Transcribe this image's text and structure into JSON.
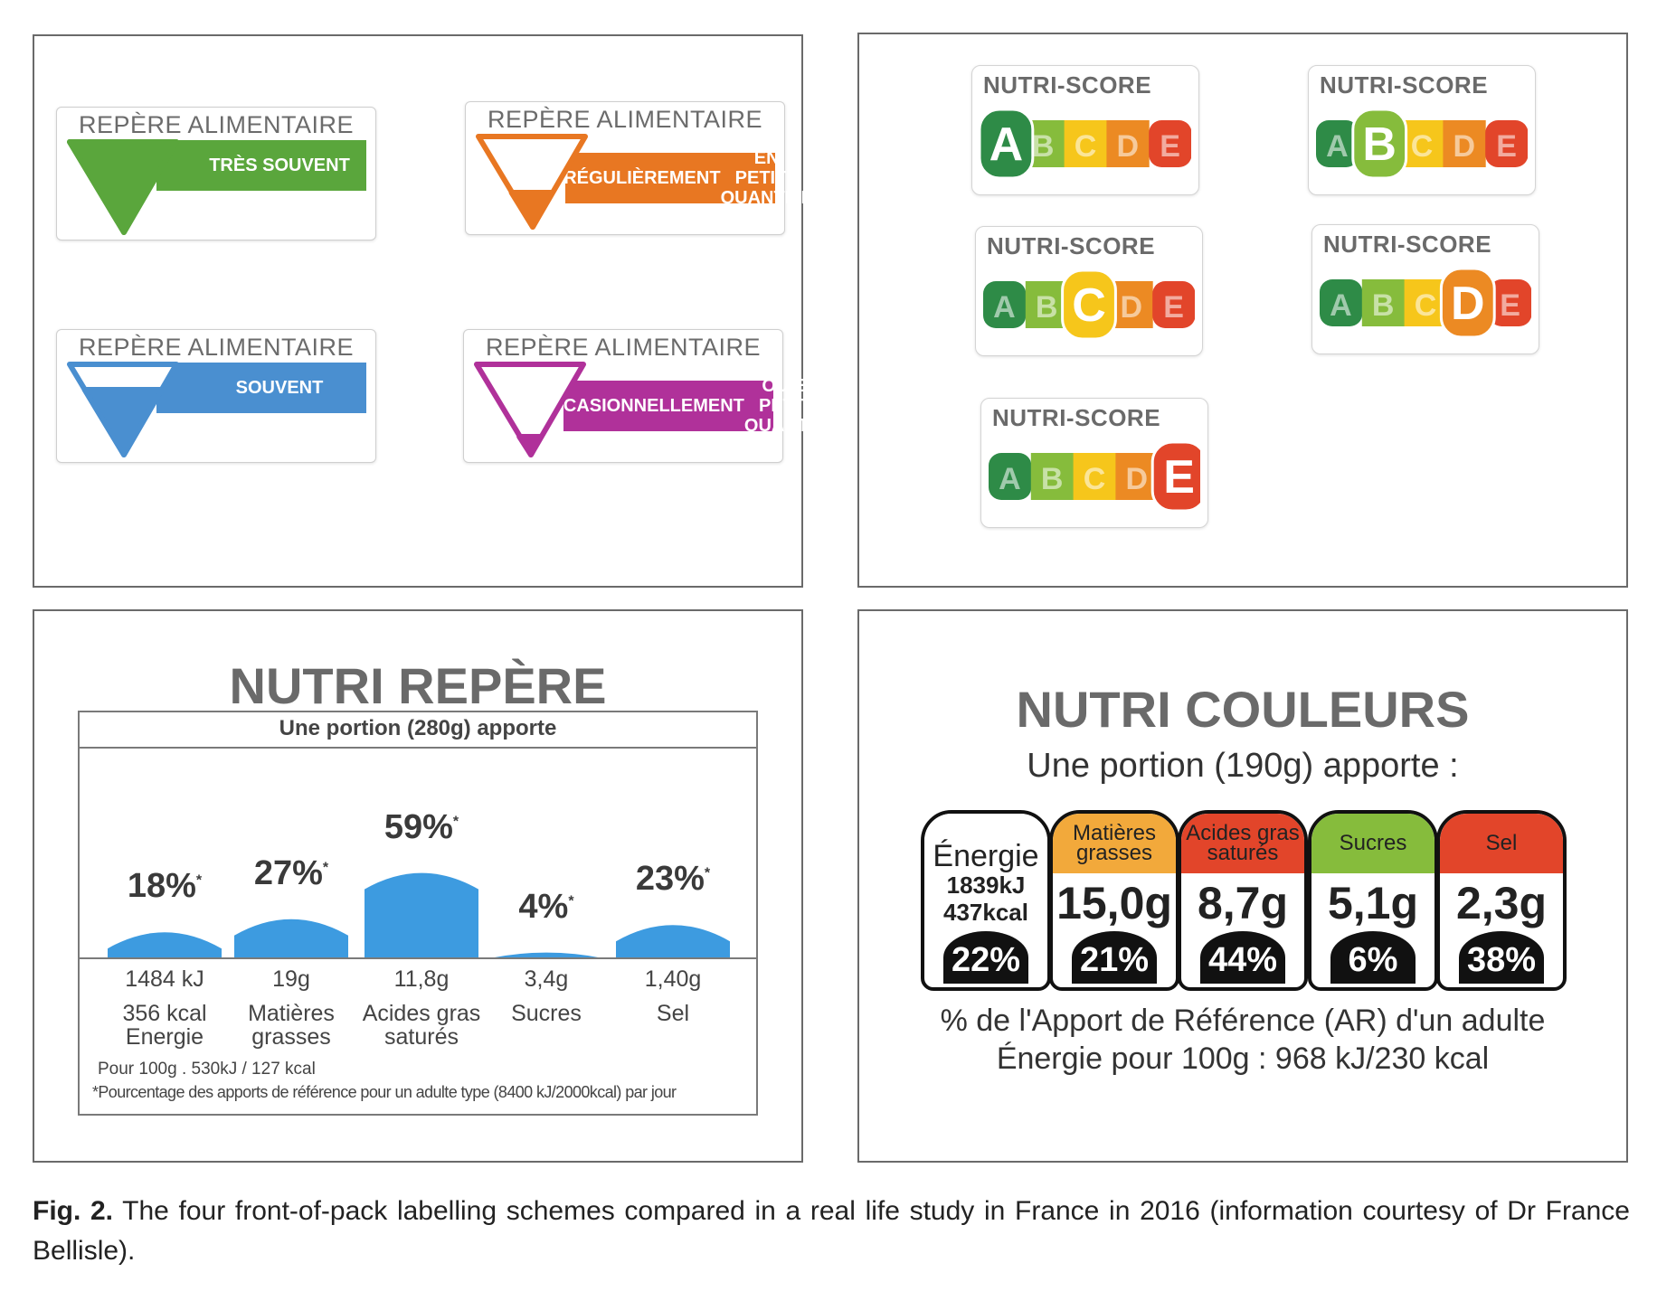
{
  "repere_alimentaire": {
    "labels": [
      {
        "title": "REPÈRE ALIMENTAIRE",
        "band_lines": [
          "TRÈS SOUVENT"
        ],
        "color": "#5aa63c",
        "fill": "full"
      },
      {
        "title": "REPÈRE ALIMENTAIRE",
        "band_lines": [
          "RÉGULIÈREMENT",
          "EN PETITE QUANTITÉ"
        ],
        "color": "#e87722",
        "fill": "low"
      },
      {
        "title": "REPÈRE ALIMENTAIRE",
        "band_lines": [
          "SOUVENT"
        ],
        "color": "#4a8fd0",
        "fill": "high"
      },
      {
        "title": "REPÈRE ALIMENTAIRE",
        "band_lines": [
          "OCCASIONNELLEMENT",
          "OU EN PETITE QUANTITÉ"
        ],
        "color": "#b0319a",
        "fill": "tip"
      }
    ]
  },
  "nutri_score": {
    "title": "NUTRI-SCORE",
    "letters": [
      "A",
      "B",
      "C",
      "D",
      "E"
    ],
    "colors": [
      "#2e8b47",
      "#86bc3c",
      "#f6c61b",
      "#ec8a23",
      "#e2452a"
    ],
    "highlighted": [
      "A",
      "B",
      "C",
      "D",
      "E"
    ]
  },
  "nutri_repere": {
    "title": "NUTRI REPÈRE",
    "portion": "Une portion (280g) apporte",
    "bar_color": "#3d9be0",
    "items": [
      {
        "pct": "18%",
        "star": "*",
        "value": 18,
        "lines": [
          "1484 kJ",
          "356 kcal",
          "Energie"
        ]
      },
      {
        "pct": "27%",
        "star": "*",
        "value": 27,
        "lines": [
          "19g",
          "Matières",
          "grasses"
        ]
      },
      {
        "pct": "59%",
        "star": "*",
        "value": 59,
        "lines": [
          "11,8g",
          "Acides gras",
          "saturés"
        ]
      },
      {
        "pct": "4%",
        "star": "*",
        "value": 4,
        "lines": [
          "3,4g",
          "Sucres"
        ]
      },
      {
        "pct": "23%",
        "star": "*",
        "value": 23,
        "lines": [
          "1,40g",
          "Sel"
        ]
      }
    ],
    "footnote_1": "Pour 100g . 530kJ / 127 kcal",
    "footnote_2": "*Pourcentage des apports de référence pour un adulte type (8400 kJ/2000kcal) par jour"
  },
  "nutri_couleurs": {
    "title": "NUTRI COULEURS",
    "portion": "Une portion (190g) apporte :",
    "cells": [
      {
        "head": "Énergie",
        "amount_lines": [
          "1839kJ",
          "437kcal"
        ],
        "pct": "22%",
        "color": "#ffffff"
      },
      {
        "head": "Matières grasses",
        "amount": "15,0g",
        "pct": "21%",
        "color": "#f2a93b"
      },
      {
        "head": "Acides gras saturés",
        "amount": "8,7g",
        "pct": "44%",
        "color": "#e2452a"
      },
      {
        "head": "Sucres",
        "amount": "5,1g",
        "pct": "6%",
        "color": "#86bc3c"
      },
      {
        "head": "Sel",
        "amount": "2,3g",
        "pct": "38%",
        "color": "#e2452a"
      }
    ],
    "footer_1": "% de l'Apport de Référence (AR) d'un adulte",
    "footer_2": "Énergie pour 100g : 968 kJ/230 kcal"
  },
  "caption": {
    "label": "Fig. 2.",
    "text": " The four front-of-pack labelling schemes compared in a real life study in France in 2016 (information courtesy of Dr France Bellisle)."
  }
}
